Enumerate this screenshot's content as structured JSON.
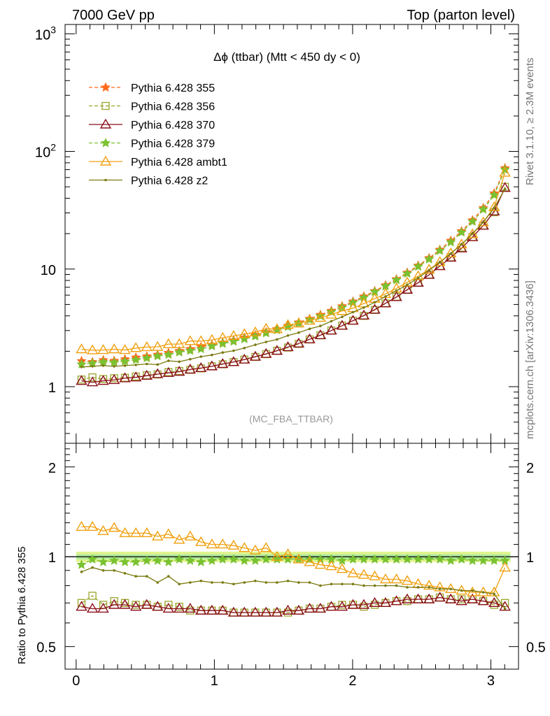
{
  "header": {
    "left_label": "7000 GeV pp",
    "right_label": "Top (parton level)"
  },
  "side_labels": {
    "right_top": "Rivet 3.1.10, ≥ 2.3M events",
    "right_bottom": "mcplots.cern.ch [arXiv:1306.3436]"
  },
  "chart_data": [
    {
      "type": "line",
      "title": "Δϕ (ttbar) (Mtt < 450 dy < 0)",
      "watermark": "(MC_FBA_TTBAR)",
      "log_y": true,
      "xlim": [
        -0.08,
        3.2
      ],
      "ylim": [
        0.33,
        1200
      ],
      "y_tick_labels": [
        "1",
        "10",
        "10^2",
        "10^3"
      ],
      "x_tick_labels": [
        "0",
        "1",
        "2",
        "3"
      ],
      "legend_position": "top-left",
      "x": [
        0.039,
        0.118,
        0.196,
        0.275,
        0.353,
        0.432,
        0.511,
        0.589,
        0.668,
        0.746,
        0.825,
        0.903,
        0.982,
        1.06,
        1.139,
        1.217,
        1.296,
        1.374,
        1.453,
        1.532,
        1.61,
        1.689,
        1.767,
        1.846,
        1.924,
        2.003,
        2.081,
        2.16,
        2.238,
        2.317,
        2.395,
        2.474,
        2.553,
        2.631,
        2.71,
        2.788,
        2.867,
        2.945,
        3.024,
        3.102
      ],
      "series": [
        {
          "name": "Pythia 6.428 355",
          "color": "#ff6a1a",
          "marker": "star",
          "dash": true,
          "values": [
            1.65,
            1.62,
            1.68,
            1.66,
            1.71,
            1.77,
            1.81,
            1.87,
            1.94,
            2.01,
            2.09,
            2.18,
            2.27,
            2.37,
            2.48,
            2.61,
            2.75,
            2.91,
            3.09,
            3.29,
            3.52,
            3.78,
            4.08,
            4.42,
            4.83,
            5.3,
            5.85,
            6.5,
            7.28,
            8.2,
            9.32,
            10.7,
            12.4,
            14.6,
            17.4,
            21.0,
            26.0,
            33.0,
            44.0,
            72.0
          ]
        },
        {
          "name": "Pythia 6.428 356",
          "color": "#9aa52a",
          "marker": "square-open",
          "dash": true,
          "values": [
            1.15,
            1.2,
            1.16,
            1.18,
            1.19,
            1.22,
            1.25,
            1.27,
            1.33,
            1.36,
            1.39,
            1.43,
            1.49,
            1.55,
            1.62,
            1.7,
            1.79,
            1.89,
            2.02,
            2.15,
            2.31,
            2.52,
            2.73,
            3.0,
            3.31,
            3.64,
            4.0,
            4.49,
            5.1,
            5.82,
            6.65,
            7.68,
            8.95,
            10.6,
            12.6,
            15.2,
            18.7,
            23.4,
            30.4,
            50.0
          ]
        },
        {
          "name": "Pythia 6.428 370",
          "color": "#8b0f1a",
          "marker": "triangle-open",
          "dash": false,
          "values": [
            1.12,
            1.09,
            1.12,
            1.14,
            1.18,
            1.2,
            1.24,
            1.28,
            1.31,
            1.34,
            1.4,
            1.44,
            1.49,
            1.56,
            1.62,
            1.7,
            1.8,
            1.9,
            2.02,
            2.17,
            2.33,
            2.53,
            2.74,
            3.0,
            3.3,
            3.64,
            4.03,
            4.52,
            5.12,
            5.78,
            6.68,
            7.66,
            8.93,
            10.6,
            12.5,
            15.0,
            18.7,
            23.4,
            30.9,
            49.0
          ]
        },
        {
          "name": "Pythia 6.428 379",
          "color": "#7ac231",
          "marker": "star",
          "dash": true,
          "values": [
            1.55,
            1.58,
            1.62,
            1.61,
            1.64,
            1.69,
            1.75,
            1.82,
            1.87,
            1.96,
            2.02,
            2.09,
            2.21,
            2.32,
            2.42,
            2.54,
            2.68,
            2.85,
            3.03,
            3.22,
            3.45,
            3.71,
            3.98,
            4.32,
            4.7,
            5.18,
            5.71,
            6.4,
            7.14,
            8.06,
            9.15,
            10.5,
            12.1,
            14.3,
            16.9,
            20.5,
            25.3,
            32.1,
            42.5,
            70.0
          ]
        },
        {
          "name": "Pythia 6.428 ambt1",
          "color": "#f0a010",
          "marker": "triangle-open",
          "dash": false,
          "values": [
            2.08,
            2.04,
            2.05,
            2.08,
            2.05,
            2.13,
            2.17,
            2.18,
            2.3,
            2.3,
            2.44,
            2.44,
            2.5,
            2.6,
            2.7,
            2.8,
            2.9,
            3.11,
            3.08,
            3.35,
            3.45,
            3.64,
            3.85,
            4.1,
            4.4,
            4.65,
            5.1,
            5.6,
            6.15,
            6.85,
            7.7,
            8.7,
            9.9,
            11.5,
            13.6,
            16.2,
            19.8,
            25.0,
            33.6,
            66.0
          ]
        },
        {
          "name": "Pythia 6.428 z2",
          "color": "#7a7a10",
          "marker": "dot",
          "dash": false,
          "values": [
            1.47,
            1.49,
            1.51,
            1.49,
            1.51,
            1.53,
            1.56,
            1.54,
            1.66,
            1.63,
            1.71,
            1.8,
            1.86,
            1.95,
            2.02,
            2.13,
            2.27,
            2.4,
            2.52,
            2.72,
            2.88,
            3.1,
            3.28,
            3.6,
            3.92,
            4.3,
            4.7,
            5.22,
            5.85,
            6.55,
            7.35,
            8.4,
            9.8,
            11.4,
            13.5,
            16.2,
            20.0,
            25.0,
            33.0,
            48.0
          ]
        }
      ]
    },
    {
      "type": "line",
      "ylabel": "Ratio to Pythia 6.428 355",
      "ylim": [
        0.42,
        2.4
      ],
      "log_y": true,
      "y_tick_labels": [
        "0.5",
        "1",
        "2"
      ],
      "reference_band": [
        0.96,
        1.04
      ],
      "series": [
        {
          "name": "Pythia 6.428 355",
          "values": [
            1.0,
            1.0,
            1.0,
            1.0,
            1.0,
            1.0,
            1.0,
            1.0,
            1.0,
            1.0,
            1.0,
            1.0,
            1.0,
            1.0,
            1.0,
            1.0,
            1.0,
            1.0,
            1.0,
            1.0,
            1.0,
            1.0,
            1.0,
            1.0,
            1.0,
            1.0,
            1.0,
            1.0,
            1.0,
            1.0,
            1.0,
            1.0,
            1.0,
            1.0,
            1.0,
            1.0,
            1.0,
            1.0,
            1.0,
            1.0
          ]
        },
        {
          "name": "Pythia 6.428 356",
          "values": [
            0.7,
            0.74,
            0.69,
            0.71,
            0.7,
            0.69,
            0.69,
            0.68,
            0.69,
            0.68,
            0.66,
            0.66,
            0.66,
            0.66,
            0.65,
            0.65,
            0.65,
            0.65,
            0.65,
            0.65,
            0.66,
            0.67,
            0.67,
            0.68,
            0.69,
            0.69,
            0.68,
            0.69,
            0.7,
            0.71,
            0.71,
            0.72,
            0.72,
            0.73,
            0.72,
            0.72,
            0.72,
            0.71,
            0.69,
            0.7
          ]
        },
        {
          "name": "Pythia 6.428 370",
          "values": [
            0.68,
            0.67,
            0.67,
            0.69,
            0.69,
            0.68,
            0.69,
            0.68,
            0.67,
            0.67,
            0.67,
            0.66,
            0.66,
            0.66,
            0.65,
            0.65,
            0.65,
            0.65,
            0.65,
            0.66,
            0.66,
            0.67,
            0.67,
            0.68,
            0.68,
            0.69,
            0.69,
            0.7,
            0.7,
            0.71,
            0.72,
            0.72,
            0.72,
            0.73,
            0.72,
            0.71,
            0.72,
            0.71,
            0.7,
            0.68
          ]
        },
        {
          "name": "Pythia 6.428 379",
          "values": [
            0.94,
            0.98,
            0.96,
            0.97,
            0.96,
            0.96,
            0.97,
            0.97,
            0.96,
            0.98,
            0.97,
            0.96,
            0.97,
            0.98,
            0.98,
            0.97,
            0.97,
            0.98,
            0.98,
            0.98,
            0.98,
            0.98,
            0.98,
            0.98,
            0.97,
            0.98,
            0.98,
            0.98,
            0.98,
            0.98,
            0.98,
            0.98,
            0.98,
            0.98,
            0.97,
            0.98,
            0.97,
            0.97,
            0.97,
            0.97
          ]
        },
        {
          "name": "Pythia 6.428 ambt1",
          "values": [
            1.26,
            1.26,
            1.22,
            1.25,
            1.2,
            1.2,
            1.2,
            1.17,
            1.19,
            1.14,
            1.17,
            1.12,
            1.1,
            1.1,
            1.09,
            1.07,
            1.05,
            1.07,
            1.0,
            1.02,
            0.98,
            0.96,
            0.94,
            0.93,
            0.91,
            0.88,
            0.87,
            0.86,
            0.84,
            0.84,
            0.83,
            0.81,
            0.8,
            0.79,
            0.78,
            0.77,
            0.76,
            0.76,
            0.76,
            0.92
          ]
        },
        {
          "name": "Pythia 6.428 z2",
          "values": [
            0.89,
            0.92,
            0.9,
            0.9,
            0.88,
            0.86,
            0.86,
            0.82,
            0.86,
            0.81,
            0.82,
            0.83,
            0.82,
            0.82,
            0.81,
            0.82,
            0.83,
            0.82,
            0.82,
            0.83,
            0.82,
            0.82,
            0.8,
            0.81,
            0.81,
            0.81,
            0.8,
            0.8,
            0.8,
            0.8,
            0.79,
            0.79,
            0.79,
            0.78,
            0.78,
            0.77,
            0.77,
            0.76,
            0.75,
            0.67
          ]
        }
      ]
    }
  ]
}
